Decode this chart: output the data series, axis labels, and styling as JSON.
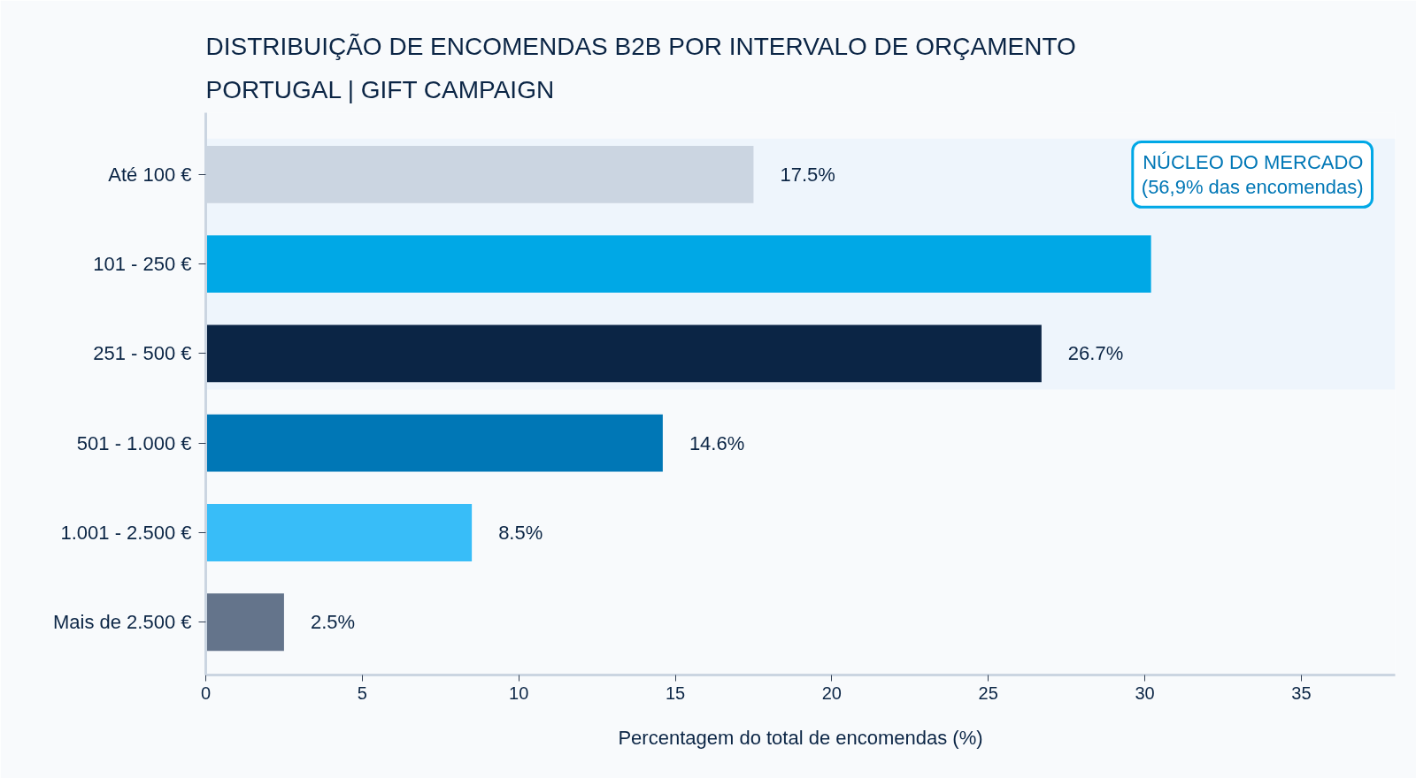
{
  "chart_data": {
    "type": "bar",
    "orientation": "horizontal",
    "title": "DISTRIBUIÇÃO DE ENCOMENDAS B2B POR INTERVALO DE ORÇAMENTO",
    "subtitle": "PORTUGAL | GIFT CAMPAIGN",
    "xlabel": "Percentagem do total de encomendas (%)",
    "categories": [
      "Até 100 €",
      "101 - 250 €",
      "251 - 500 €",
      "501 - 1.000 €",
      "1.001 - 2.500 €",
      "Mais de 2.500 €"
    ],
    "values": [
      17.5,
      30.2,
      26.7,
      14.6,
      8.5,
      2.5
    ],
    "colors": [
      "#cbd5e1",
      "#00a8e6",
      "#0b2545",
      "#0077b6",
      "#38bdf8",
      "#64748b"
    ],
    "value_labels": [
      "17.5%",
      null,
      "26.7%",
      "14.6%",
      "8.5%",
      "2.5%"
    ],
    "xlim": [
      0,
      38
    ],
    "xticks": [
      0,
      5,
      10,
      15,
      20,
      25,
      30,
      35
    ],
    "bands": [
      {
        "axis": "y",
        "from": "Até 100 €",
        "to": "251 - 500 €",
        "label": "NÚCLEO DO MERCADO\n(56,9% das encomendas)",
        "color": "#eef5fc"
      }
    ]
  }
}
